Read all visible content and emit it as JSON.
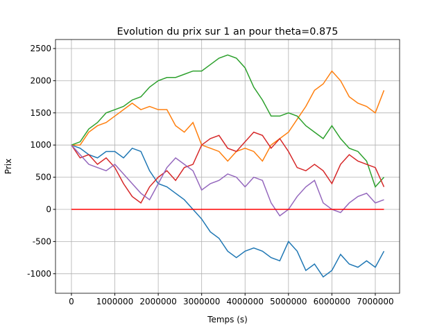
{
  "chart_data": {
    "type": "line",
    "title": "Evolution du prix sur 1 an pour theta=0.875",
    "xlabel": "Temps (s)",
    "ylabel": "Prix",
    "x": [
      0,
      200000,
      400000,
      600000,
      800000,
      1000000,
      1200000,
      1400000,
      1600000,
      1800000,
      2000000,
      2200000,
      2400000,
      2600000,
      2800000,
      3000000,
      3200000,
      3400000,
      3600000,
      3800000,
      4000000,
      4200000,
      4400000,
      4600000,
      4800000,
      5000000,
      5200000,
      5400000,
      5600000,
      5800000,
      6000000,
      6200000,
      6400000,
      6600000,
      6800000,
      7000000,
      7200000
    ],
    "series": [
      {
        "color": "#1f77b4",
        "values": [
          1000,
          950,
          850,
          800,
          900,
          900,
          800,
          950,
          900,
          600,
          400,
          350,
          250,
          150,
          0,
          -150,
          -350,
          -450,
          -650,
          -750,
          -650,
          -600,
          -650,
          -750,
          -800,
          -500,
          -650,
          -950,
          -850,
          -1050,
          -950,
          -700,
          -850,
          -900,
          -800,
          -900,
          -650
        ]
      },
      {
        "color": "#ff7f0e",
        "values": [
          1000,
          1000,
          1200,
          1300,
          1350,
          1450,
          1550,
          1650,
          1550,
          1600,
          1550,
          1550,
          1300,
          1200,
          1350,
          1000,
          950,
          900,
          750,
          900,
          950,
          900,
          750,
          1000,
          1100,
          1200,
          1400,
          1600,
          1850,
          1950,
          2150,
          2000,
          1750,
          1650,
          1600,
          1500,
          1850
        ]
      },
      {
        "color": "#2ca02c",
        "values": [
          1000,
          1050,
          1250,
          1350,
          1500,
          1550,
          1600,
          1700,
          1750,
          1900,
          2000,
          2050,
          2050,
          2100,
          2150,
          2150,
          2250,
          2350,
          2400,
          2350,
          2200,
          1900,
          1700,
          1450,
          1450,
          1500,
          1450,
          1300,
          1200,
          1100,
          1300,
          1100,
          950,
          900,
          750,
          350,
          500
        ]
      },
      {
        "color": "#d62728",
        "values": [
          1000,
          800,
          850,
          700,
          800,
          650,
          400,
          200,
          100,
          350,
          500,
          600,
          450,
          650,
          700,
          1000,
          1100,
          1150,
          950,
          900,
          1050,
          1200,
          1150,
          950,
          1100,
          900,
          650,
          600,
          700,
          600,
          400,
          700,
          850,
          750,
          700,
          650,
          350
        ]
      },
      {
        "color": "#9467bd",
        "values": [
          1000,
          850,
          700,
          650,
          600,
          700,
          550,
          400,
          250,
          150,
          400,
          650,
          800,
          700,
          600,
          300,
          400,
          450,
          550,
          500,
          350,
          500,
          450,
          100,
          -100,
          0,
          200,
          350,
          450,
          100,
          0,
          -50,
          100,
          200,
          250,
          100,
          150
        ]
      },
      {
        "color": "red",
        "values": [
          0,
          0,
          0,
          0,
          0,
          0,
          0,
          0,
          0,
          0,
          0,
          0,
          0,
          0,
          0,
          0,
          0,
          0,
          0,
          0,
          0,
          0,
          0,
          0,
          0,
          0,
          0,
          0,
          0,
          0,
          0,
          0,
          0,
          0,
          0,
          0,
          0
        ]
      }
    ],
    "xlim": [
      -367000,
      7560000
    ],
    "xticks": [
      0,
      1000000,
      2000000,
      3000000,
      4000000,
      5000000,
      6000000,
      7000000
    ],
    "ylim": [
      -1304,
      2640
    ],
    "yticks": [
      -1000,
      -500,
      0,
      500,
      1000,
      1500,
      2000,
      2500
    ],
    "grid": true
  }
}
